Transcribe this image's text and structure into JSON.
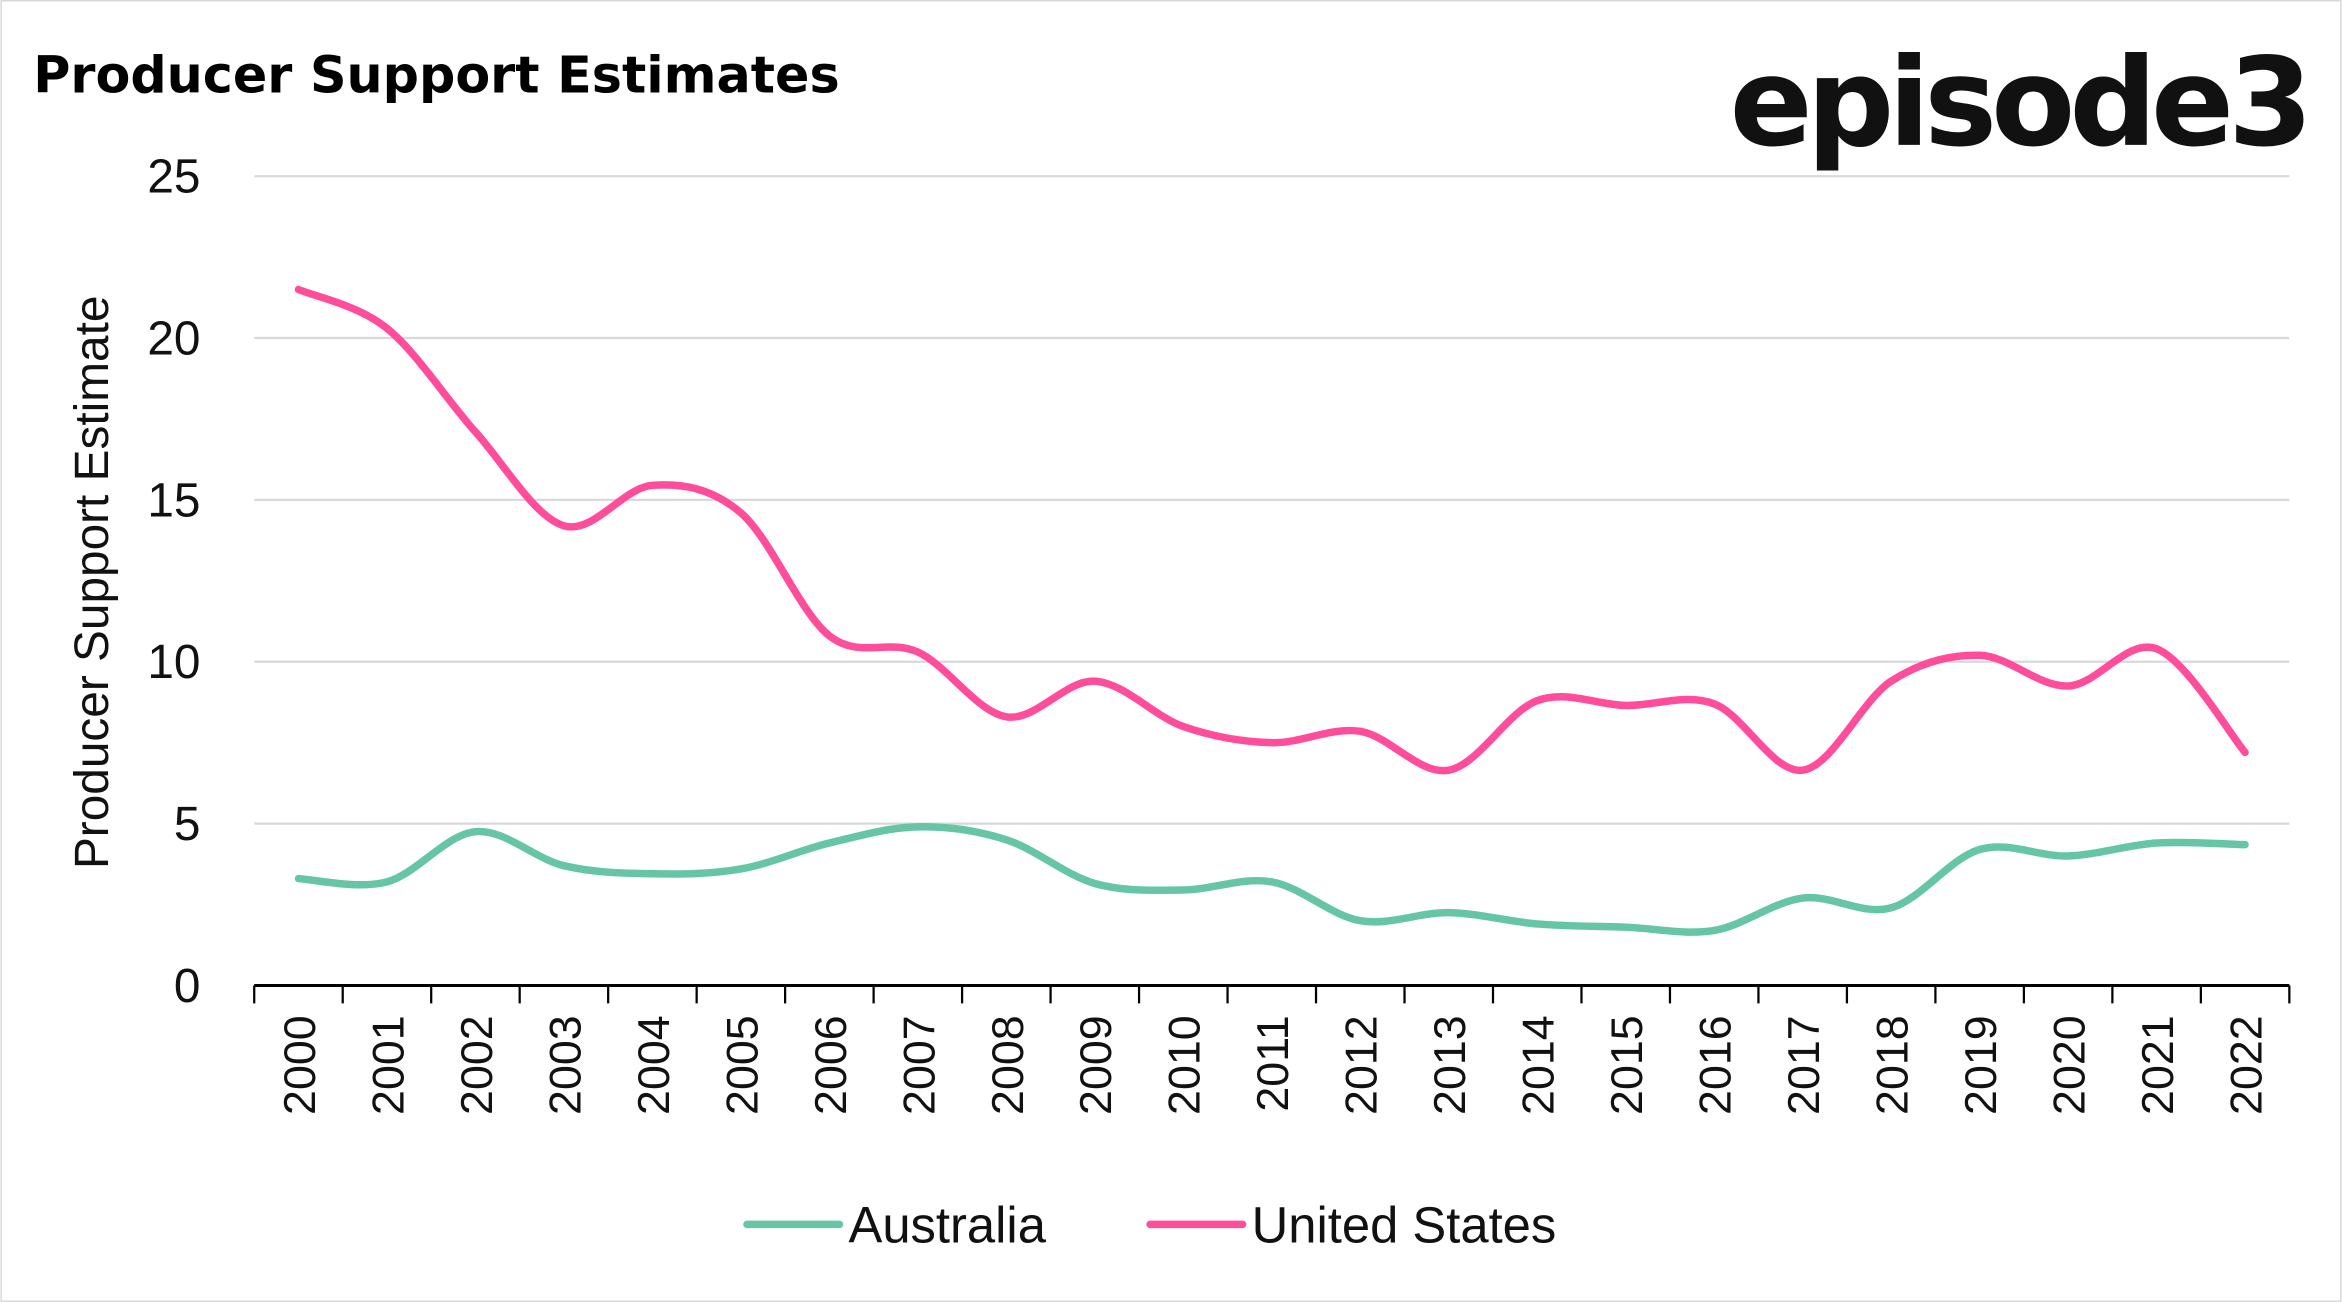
{
  "chart_data": {
    "type": "line",
    "title": "Producer Support Estimates",
    "logo": "episode3",
    "xlabel": "",
    "ylabel": "Producer Support Estimate",
    "ylim": [
      0,
      25
    ],
    "yticks": [
      0,
      5,
      10,
      15,
      20,
      25
    ],
    "grid": true,
    "legend_position": "bottom",
    "smoothed": true,
    "categories": [
      "2000",
      "2001",
      "2002",
      "2003",
      "2004",
      "2005",
      "2006",
      "2007",
      "2008",
      "2009",
      "2010",
      "2011",
      "2012",
      "2013",
      "2014",
      "2015",
      "2016",
      "2017",
      "2018",
      "2019",
      "2020",
      "2021",
      "2022"
    ],
    "series": [
      {
        "name": "Australia",
        "color": "#66C5A5",
        "values": [
          3.3,
          3.2,
          4.75,
          3.7,
          3.45,
          3.6,
          4.4,
          4.9,
          4.5,
          3.15,
          2.95,
          3.2,
          2.0,
          2.25,
          1.9,
          1.8,
          1.7,
          2.7,
          2.4,
          4.2,
          4.0,
          4.4,
          4.35
        ]
      },
      {
        "name": "United States",
        "color": "#FF4D9B",
        "values": [
          21.5,
          20.3,
          17.1,
          14.2,
          15.45,
          14.6,
          10.8,
          10.3,
          8.3,
          9.4,
          8.0,
          7.5,
          7.85,
          6.65,
          8.8,
          8.65,
          8.7,
          6.65,
          9.4,
          10.2,
          9.25,
          10.4,
          7.2
        ]
      }
    ]
  }
}
